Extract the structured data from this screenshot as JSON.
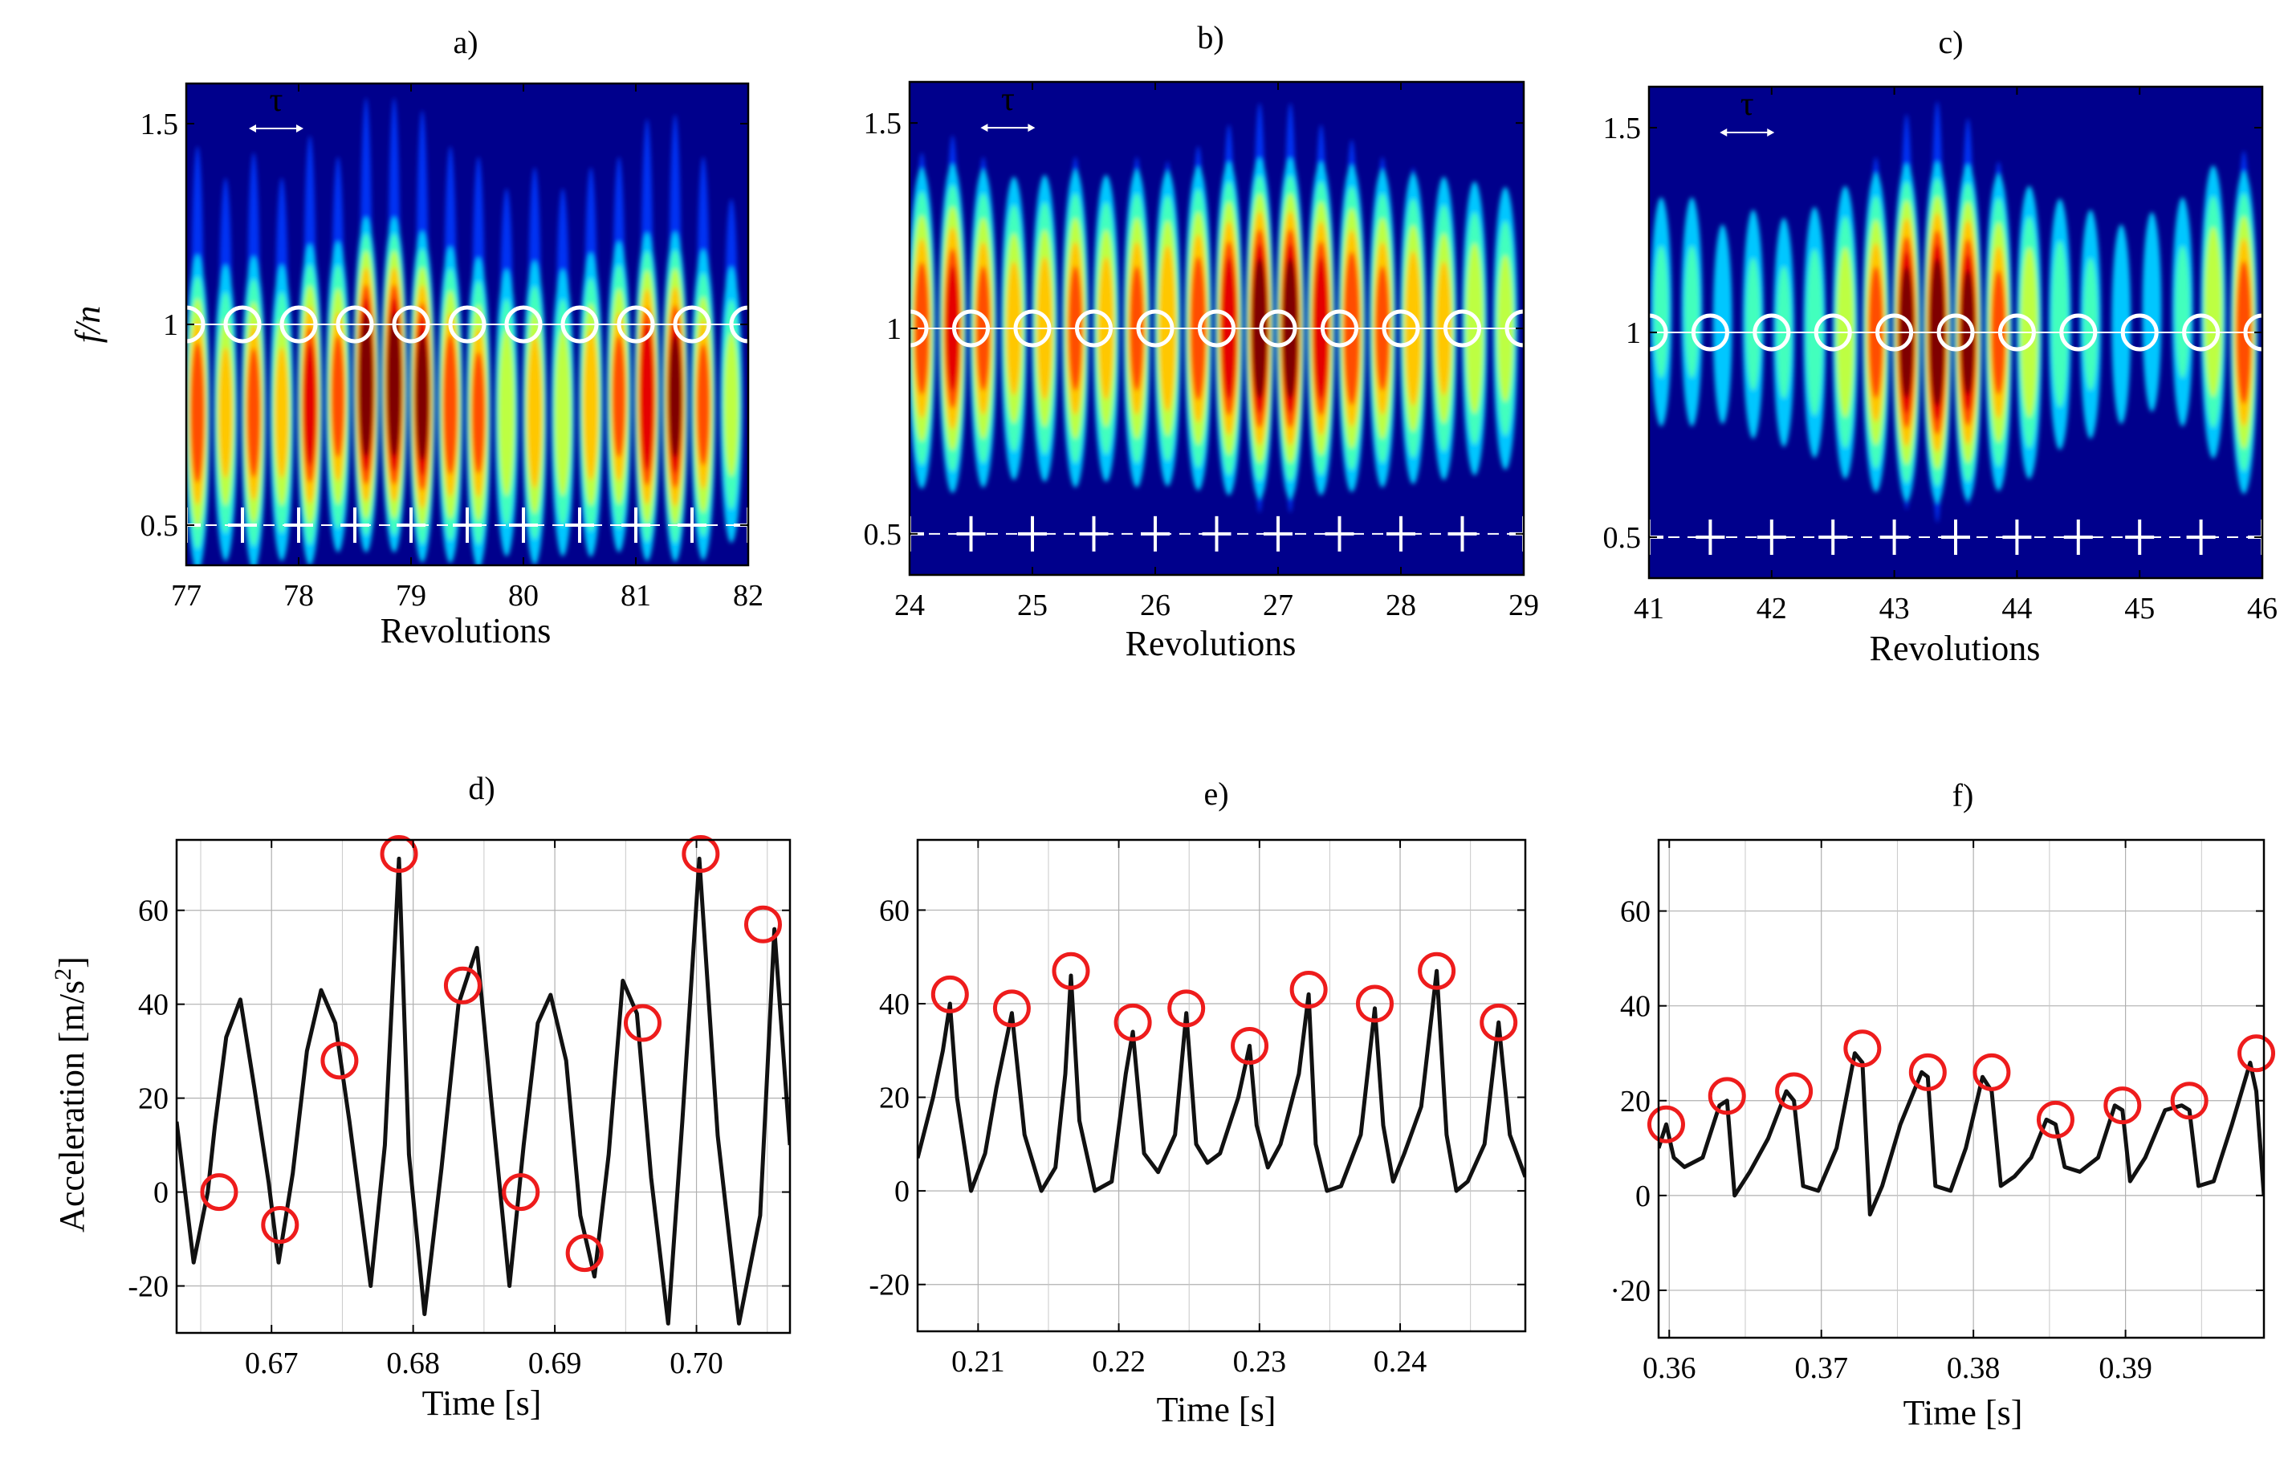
{
  "chart_data": [
    {
      "panel": "a)",
      "type": "heatmap",
      "xlabel": "Revolutions",
      "ylabel": "f/n",
      "ylabel_italic_text": "f",
      "xlim": [
        77,
        82
      ],
      "ylim": [
        0.4,
        1.6
      ],
      "xticks": [
        77,
        78,
        79,
        80,
        81,
        82
      ],
      "yticks": [
        0.5,
        1,
        1.5
      ],
      "xtick_labels": [
        "77",
        "78",
        "79",
        "80",
        "81",
        "82"
      ],
      "ytick_labels": [
        "0.5",
        "1",
        "1.5"
      ],
      "annotation": "τ",
      "annotation_x": 77.8,
      "annotation_y": 1.5,
      "circles_y": 1.0,
      "plus_y": 0.5,
      "circles_x": [
        77.0,
        77.5,
        78.0,
        78.5,
        79.0,
        79.5,
        80.0,
        80.5,
        81.0,
        81.5,
        82.0
      ],
      "plus_x": [
        77.0,
        77.5,
        78.0,
        78.5,
        79.0,
        79.5,
        80.0,
        80.5,
        81.0,
        81.5,
        82.0
      ],
      "blob_x": [
        77.1,
        77.35,
        77.6,
        77.85,
        78.1,
        78.35,
        78.6,
        78.85,
        79.1,
        79.35,
        79.6,
        79.85,
        80.1,
        80.35,
        80.6,
        80.85,
        81.1,
        81.35,
        81.6,
        81.85
      ],
      "blob_y": [
        0.78,
        0.78,
        0.78,
        0.78,
        0.8,
        0.82,
        0.85,
        0.85,
        0.82,
        0.8,
        0.78,
        0.78,
        0.78,
        0.78,
        0.8,
        0.82,
        0.82,
        0.82,
        0.8,
        0.8
      ],
      "blob_intensity": [
        0.75,
        0.6,
        0.72,
        0.6,
        0.8,
        0.7,
        0.98,
        0.98,
        0.92,
        0.75,
        0.7,
        0.55,
        0.65,
        0.55,
        0.65,
        0.7,
        0.88,
        0.9,
        0.7,
        0.5
      ]
    },
    {
      "panel": "b)",
      "type": "heatmap",
      "xlabel": "Revolutions",
      "ylabel": "",
      "xlim": [
        24,
        29
      ],
      "ylim": [
        0.4,
        1.6
      ],
      "xticks": [
        24,
        25,
        26,
        27,
        28,
        29
      ],
      "yticks": [
        0.5,
        1,
        1.5
      ],
      "xtick_labels": [
        "24",
        "25",
        "26",
        "27",
        "28",
        "29"
      ],
      "ytick_labels": [
        "0.5",
        "1",
        "1.5"
      ],
      "annotation": "τ",
      "annotation_x": 24.8,
      "annotation_y": 1.5,
      "circles_y": 1.0,
      "plus_y": 0.5,
      "circles_x": [
        24.0,
        24.5,
        25.0,
        25.5,
        26.0,
        26.5,
        27.0,
        27.5,
        28.0,
        28.5,
        29.0
      ],
      "plus_x": [
        24.0,
        24.5,
        25.0,
        25.5,
        26.0,
        26.5,
        27.0,
        27.5,
        28.0,
        28.5,
        29.0
      ],
      "blob_x": [
        24.1,
        24.35,
        24.6,
        24.85,
        25.1,
        25.35,
        25.6,
        25.85,
        26.1,
        26.35,
        26.6,
        26.85,
        27.1,
        27.35,
        27.6,
        27.85,
        28.1,
        28.35,
        28.6,
        28.85
      ],
      "blob_y": [
        1.0,
        1.0,
        1.0,
        1.0,
        1.0,
        1.0,
        1.0,
        1.0,
        1.0,
        1.0,
        1.0,
        1.0,
        1.0,
        1.0,
        1.0,
        1.0,
        1.0,
        1.0,
        1.0,
        1.0
      ],
      "blob_intensity": [
        0.72,
        0.8,
        0.7,
        0.6,
        0.62,
        0.7,
        0.62,
        0.7,
        0.68,
        0.75,
        0.85,
        0.95,
        0.95,
        0.85,
        0.78,
        0.7,
        0.65,
        0.6,
        0.55,
        0.5
      ]
    },
    {
      "panel": "c)",
      "type": "heatmap",
      "xlabel": "Revolutions",
      "ylabel": "",
      "xlim": [
        41,
        46
      ],
      "ylim": [
        0.4,
        1.6
      ],
      "xticks": [
        41,
        42,
        43,
        44,
        45,
        46
      ],
      "yticks": [
        0.5,
        1,
        1.5
      ],
      "xtick_labels": [
        "41",
        "42",
        "43",
        "44",
        "45",
        "46"
      ],
      "ytick_labels": [
        "0.5",
        "1",
        "1.5"
      ],
      "annotation": "τ",
      "annotation_x": 41.8,
      "annotation_y": 1.5,
      "circles_y": 1.0,
      "plus_y": 0.5,
      "circles_x": [
        41.0,
        41.5,
        42.0,
        42.5,
        43.0,
        43.5,
        44.0,
        44.5,
        45.0,
        45.5,
        46.0
      ],
      "plus_x": [
        41.0,
        41.5,
        42.0,
        42.5,
        43.0,
        43.5,
        44.0,
        44.5,
        45.0,
        45.5,
        46.0
      ],
      "blob_x": [
        41.1,
        41.35,
        41.6,
        41.85,
        42.1,
        42.35,
        42.6,
        42.85,
        43.1,
        43.35,
        43.6,
        43.85,
        44.1,
        44.35,
        44.6,
        44.85,
        45.1,
        45.35,
        45.6,
        45.85
      ],
      "blob_y": [
        1.05,
        1.05,
        1.02,
        1.02,
        1.0,
        1.0,
        1.0,
        1.0,
        1.0,
        1.0,
        1.0,
        1.0,
        1.0,
        1.02,
        1.02,
        1.02,
        1.05,
        1.05,
        1.05,
        1.0
      ],
      "blob_intensity": [
        0.35,
        0.35,
        0.3,
        0.35,
        0.35,
        0.4,
        0.55,
        0.72,
        0.92,
        0.98,
        0.9,
        0.7,
        0.55,
        0.4,
        0.35,
        0.3,
        0.3,
        0.35,
        0.55,
        0.75
      ]
    },
    {
      "panel": "d)",
      "type": "line",
      "xlabel": "Time [s]",
      "ylabel": "Acceleration [m/s",
      "ylabel_sup": "2",
      "ylabel_end": "]",
      "xlim": [
        0.6633,
        0.7066
      ],
      "ylim": [
        -30,
        75
      ],
      "xticks": [
        0.67,
        0.68,
        0.69,
        0.7
      ],
      "yticks": [
        -20,
        0,
        20,
        40,
        60
      ],
      "xtick_labels": [
        "0.67",
        "0.68",
        "0.69",
        "0.70"
      ],
      "ytick_labels": [
        "-20",
        "0",
        "20",
        "40",
        "60"
      ],
      "series": [
        {
          "name": "acceleration",
          "x": [
            0.6633,
            0.6645,
            0.6655,
            0.666,
            0.6668,
            0.6678,
            0.6688,
            0.6698,
            0.6705,
            0.6715,
            0.6725,
            0.6735,
            0.6745,
            0.6755,
            0.677,
            0.678,
            0.679,
            0.6797,
            0.6808,
            0.682,
            0.6832,
            0.6845,
            0.6855,
            0.6868,
            0.6878,
            0.6888,
            0.6897,
            0.6908,
            0.6918,
            0.6928,
            0.6938,
            0.6948,
            0.6958,
            0.6968,
            0.698,
            0.699,
            0.7002,
            0.7015,
            0.703,
            0.7045,
            0.7055,
            0.7066
          ],
          "y": [
            15,
            -15,
            0,
            14,
            33,
            41,
            22,
            2,
            -15,
            4,
            30,
            43,
            36,
            15,
            -20,
            10,
            71,
            8,
            -26,
            5,
            40,
            52,
            20,
            -20,
            10,
            36,
            42,
            28,
            -5,
            -18,
            8,
            45,
            38,
            3,
            -28,
            15,
            71,
            12,
            -28,
            -5,
            56,
            10
          ]
        }
      ],
      "markers_x": [
        0.6663,
        0.6706,
        0.6748,
        0.679,
        0.6835,
        0.6876,
        0.6921,
        0.6962,
        0.7003,
        0.7047
      ],
      "markers_y": [
        0,
        -7,
        28,
        72,
        44,
        0,
        -13,
        36,
        72,
        57
      ]
    },
    {
      "panel": "e)",
      "type": "line",
      "xlabel": "Time [s]",
      "ylabel": "",
      "xlim": [
        0.2057,
        0.2489
      ],
      "ylim": [
        -30,
        75
      ],
      "xticks": [
        0.21,
        0.22,
        0.23,
        0.24
      ],
      "yticks": [
        -20,
        0,
        20,
        40,
        60
      ],
      "xtick_labels": [
        "0.21",
        "0.22",
        "0.23",
        "0.24"
      ],
      "ytick_labels": [
        "-20",
        "0",
        "20",
        "40",
        "60"
      ],
      "series": [
        {
          "name": "acceleration",
          "x": [
            0.2057,
            0.2068,
            0.2075,
            0.208,
            0.2085,
            0.2095,
            0.2105,
            0.2113,
            0.2124,
            0.2133,
            0.2145,
            0.2155,
            0.2162,
            0.2166,
            0.2172,
            0.2183,
            0.2195,
            0.2205,
            0.221,
            0.2218,
            0.2228,
            0.224,
            0.2248,
            0.2255,
            0.2263,
            0.2272,
            0.2285,
            0.2293,
            0.2298,
            0.2306,
            0.2315,
            0.2328,
            0.2335,
            0.234,
            0.2348,
            0.2358,
            0.2372,
            0.2382,
            0.2388,
            0.2395,
            0.2403,
            0.2415,
            0.2426,
            0.2433,
            0.244,
            0.2448,
            0.246,
            0.247,
            0.2478,
            0.2489
          ],
          "y": [
            7,
            20,
            30,
            40,
            20,
            0,
            8,
            22,
            38,
            12,
            0,
            5,
            25,
            46,
            15,
            0,
            2,
            25,
            34,
            8,
            4,
            12,
            38,
            10,
            6,
            8,
            20,
            31,
            14,
            5,
            10,
            25,
            42,
            10,
            0,
            1,
            12,
            39,
            14,
            2,
            8,
            18,
            47,
            12,
            0,
            2,
            10,
            36,
            12,
            3
          ]
        }
      ],
      "markers_x": [
        0.208,
        0.2124,
        0.2166,
        0.221,
        0.2248,
        0.2293,
        0.2335,
        0.2382,
        0.2426,
        0.247
      ],
      "markers_y": [
        42,
        39,
        47,
        36,
        39,
        31,
        43,
        40,
        47,
        36
      ]
    },
    {
      "panel": "f)",
      "type": "line",
      "xlabel": "Time [s]",
      "ylabel": "",
      "xlim": [
        0.3593,
        0.3991
      ],
      "ylim": [
        -30,
        75
      ],
      "xticks": [
        0.36,
        0.37,
        0.38,
        0.39
      ],
      "yticks": [
        -20,
        0,
        20,
        40,
        60
      ],
      "xtick_labels": [
        "0.36",
        "0.37",
        "0.38",
        "0.39"
      ],
      "ytick_labels": [
        "·20",
        "0",
        "20",
        "40",
        "60"
      ],
      "series": [
        {
          "name": "acceleration",
          "x": [
            0.3593,
            0.3598,
            0.3603,
            0.361,
            0.3622,
            0.3633,
            0.3638,
            0.3643,
            0.3653,
            0.3665,
            0.3677,
            0.3682,
            0.3688,
            0.3698,
            0.371,
            0.3722,
            0.3727,
            0.3732,
            0.374,
            0.3752,
            0.3766,
            0.377,
            0.3775,
            0.3785,
            0.3795,
            0.3806,
            0.3812,
            0.3818,
            0.3827,
            0.3838,
            0.3848,
            0.3854,
            0.386,
            0.387,
            0.3882,
            0.3893,
            0.3898,
            0.3903,
            0.3913,
            0.3926,
            0.3937,
            0.3942,
            0.3948,
            0.3958,
            0.397,
            0.3982,
            0.3986,
            0.3991
          ],
          "y": [
            10,
            15,
            8,
            6,
            8,
            19,
            20,
            0,
            5,
            12,
            22,
            20,
            2,
            1,
            10,
            30,
            28,
            -4,
            2,
            15,
            26,
            25,
            2,
            1,
            10,
            25,
            22,
            2,
            4,
            8,
            16,
            15,
            6,
            5,
            8,
            19,
            18,
            3,
            8,
            18,
            19,
            18,
            2,
            3,
            15,
            28,
            22,
            0
          ]
        }
      ],
      "markers_x": [
        0.3598,
        0.3638,
        0.3682,
        0.3727,
        0.377,
        0.3812,
        0.3854,
        0.3898,
        0.3942,
        0.3986
      ],
      "markers_y": [
        15,
        21,
        22,
        31,
        26,
        26,
        16,
        19,
        20,
        30
      ]
    }
  ]
}
